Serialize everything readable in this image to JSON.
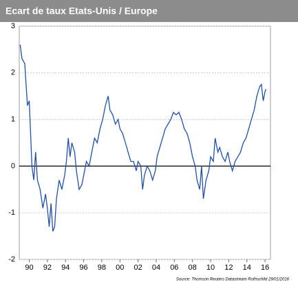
{
  "chart_data": {
    "type": "line",
    "title": "Ecart de taux Etats-Unis / Europe",
    "source": "Source: Thomson Reuters Datastream Rothschild 29/01/2016",
    "xlim": [
      1988.9,
      2016.6
    ],
    "xticks": [
      {
        "value": 1990,
        "label": "90"
      },
      {
        "value": 1992,
        "label": "92"
      },
      {
        "value": 1994,
        "label": "94"
      },
      {
        "value": 1996,
        "label": "96"
      },
      {
        "value": 1998,
        "label": "98"
      },
      {
        "value": 2000,
        "label": "00"
      },
      {
        "value": 2002,
        "label": "02"
      },
      {
        "value": 2004,
        "label": "04"
      },
      {
        "value": 2006,
        "label": "06"
      },
      {
        "value": 2008,
        "label": "08"
      },
      {
        "value": 2010,
        "label": "10"
      },
      {
        "value": 2012,
        "label": "12"
      },
      {
        "value": 2014,
        "label": "14"
      },
      {
        "value": 2016,
        "label": "16"
      }
    ],
    "ylim": [
      -2,
      3
    ],
    "yticks": [
      -2,
      -1,
      0,
      1,
      2,
      3
    ],
    "grid": true,
    "series": [
      {
        "color": "#1f4fa8",
        "x": [
          1989.0,
          1989.2,
          1989.5,
          1989.8,
          1990.0,
          1990.3,
          1990.5,
          1990.7,
          1990.9,
          1991.2,
          1991.5,
          1991.8,
          1992.0,
          1992.2,
          1992.4,
          1992.6,
          1992.8,
          1993.0,
          1993.3,
          1993.6,
          1993.9,
          1994.1,
          1994.3,
          1994.5,
          1994.7,
          1995.0,
          1995.2,
          1995.5,
          1995.8,
          1996.0,
          1996.3,
          1996.6,
          1996.9,
          1997.2,
          1997.5,
          1997.8,
          1998.1,
          1998.4,
          1998.7,
          1998.9,
          1999.2,
          1999.5,
          1999.8,
          2000.0,
          2000.3,
          2000.6,
          2000.9,
          2001.2,
          2001.5,
          2001.8,
          2002.0,
          2002.3,
          2002.5,
          2002.7,
          2003.0,
          2003.3,
          2003.6,
          2003.9,
          2004.1,
          2004.4,
          2004.7,
          2005.0,
          2005.3,
          2005.6,
          2005.9,
          2006.2,
          2006.5,
          2006.8,
          2007.1,
          2007.4,
          2007.7,
          2008.0,
          2008.3,
          2008.5,
          2008.8,
          2009.0,
          2009.2,
          2009.5,
          2009.8,
          2010.0,
          2010.3,
          2010.5,
          2010.8,
          2011.0,
          2011.3,
          2011.6,
          2011.9,
          2012.1,
          2012.4,
          2012.7,
          2013.0,
          2013.3,
          2013.6,
          2013.9,
          2014.2,
          2014.5,
          2014.8,
          2015.1,
          2015.4,
          2015.6,
          2015.8,
          2016.0,
          2016.1
        ],
        "values": [
          2.6,
          2.3,
          2.2,
          1.3,
          1.4,
          0.0,
          -0.3,
          0.3,
          -0.3,
          -0.5,
          -0.9,
          -0.6,
          -0.9,
          -1.3,
          -0.8,
          -1.4,
          -1.3,
          -0.7,
          -0.3,
          -0.5,
          -0.2,
          0.1,
          0.6,
          0.2,
          0.5,
          0.3,
          -0.1,
          -0.5,
          -0.4,
          -0.2,
          0.1,
          0.0,
          0.3,
          0.6,
          0.5,
          0.8,
          1.0,
          1.3,
          1.5,
          1.2,
          1.1,
          0.9,
          1.0,
          0.8,
          0.7,
          0.5,
          0.3,
          0.1,
          0.1,
          -0.1,
          0.1,
          0.0,
          -0.5,
          -0.2,
          0.0,
          -0.1,
          -0.3,
          -0.1,
          0.2,
          0.4,
          0.6,
          0.8,
          0.9,
          1.0,
          1.15,
          1.1,
          1.15,
          1.0,
          0.8,
          0.7,
          0.5,
          0.2,
          0.0,
          -0.3,
          -0.5,
          0.0,
          -0.7,
          -0.3,
          -0.1,
          0.2,
          0.1,
          0.6,
          0.3,
          0.4,
          0.2,
          0.1,
          0.3,
          0.1,
          -0.1,
          0.1,
          0.2,
          0.3,
          0.5,
          0.6,
          0.8,
          1.0,
          1.2,
          1.5,
          1.7,
          1.75,
          1.4,
          1.6,
          1.65
        ]
      }
    ]
  }
}
